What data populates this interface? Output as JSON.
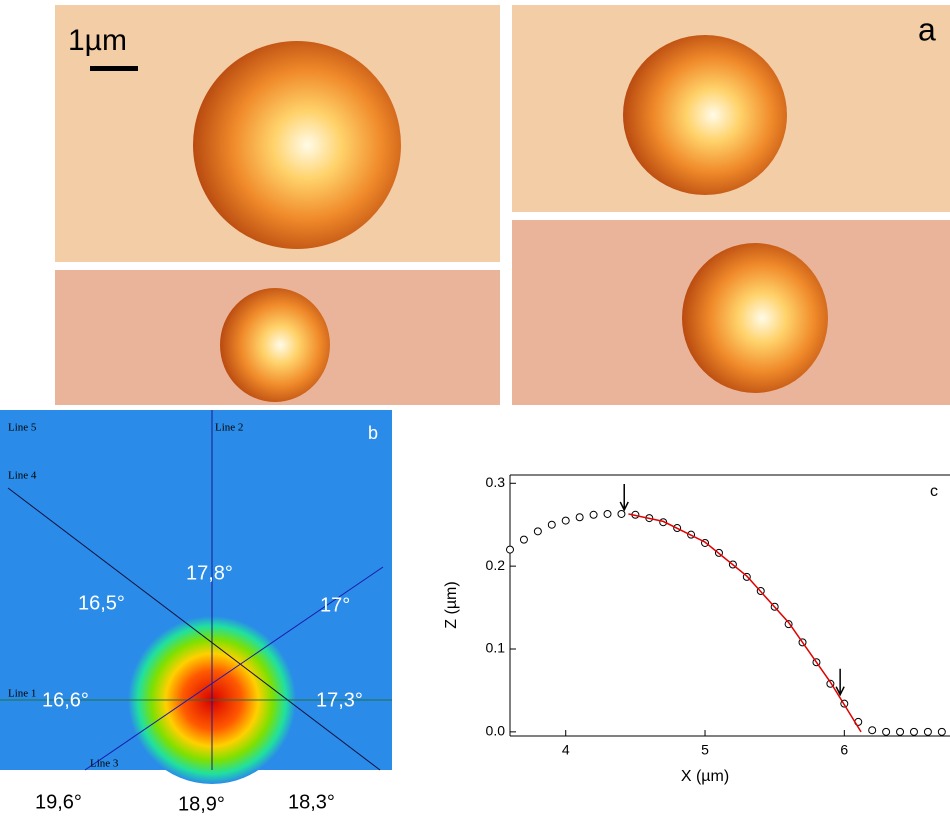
{
  "panel_a": {
    "label": "a",
    "scale_bar": "1µm"
  },
  "panel_b": {
    "label": "b",
    "lines": [
      "Line 1",
      "Line 2",
      "Line 3",
      "Line 4",
      "Line 5"
    ],
    "angles": [
      "17,8°",
      "16,5°",
      "17°",
      "16,6°",
      "17,3°",
      "19,6°",
      "18,9°",
      "18,3°"
    ]
  },
  "chart_data": {
    "type": "scatter",
    "label": "c",
    "x_label": "X (µm)",
    "y_label": "Z (µm)",
    "xlim": [
      3.6,
      6.75
    ],
    "ylim": [
      -0.005,
      0.31
    ],
    "xticks": [
      4,
      5,
      6
    ],
    "yticks": [
      {
        "value": 0,
        "label": "0.0"
      },
      {
        "value": 0.1,
        "label": "0.1"
      },
      {
        "value": 0.2,
        "label": "0.2"
      },
      {
        "value": 0.3,
        "label": "0.3"
      }
    ],
    "series": [
      {
        "style": "circles",
        "color": "#000000",
        "x": [
          3.6,
          3.7,
          3.8,
          3.9,
          4.0,
          4.1,
          4.2,
          4.3,
          4.4,
          4.5,
          4.6,
          4.7,
          4.8,
          4.9,
          5.0,
          5.1,
          5.2,
          5.3,
          5.4,
          5.5,
          5.6,
          5.7,
          5.8,
          5.9,
          6.0,
          6.1,
          6.2,
          6.3,
          6.4,
          6.5,
          6.6,
          6.7
        ],
        "values": [
          0.22,
          0.232,
          0.242,
          0.25,
          0.255,
          0.259,
          0.262,
          0.263,
          0.263,
          0.262,
          0.258,
          0.253,
          0.246,
          0.238,
          0.228,
          0.216,
          0.202,
          0.187,
          0.17,
          0.151,
          0.13,
          0.108,
          0.084,
          0.058,
          0.034,
          0.012,
          0.002,
          0,
          0,
          0,
          0,
          0
        ]
      },
      {
        "style": "line",
        "color": "#e00000",
        "x": [
          4.45,
          4.7,
          5.0,
          5.3,
          5.6,
          5.9,
          6.12
        ],
        "values": [
          0.263,
          0.254,
          0.229,
          0.188,
          0.132,
          0.06,
          0
        ]
      }
    ],
    "markers": {
      "x": [
        4.42,
        5.97
      ],
      "values": [
        0.263,
        0.04
      ]
    }
  }
}
